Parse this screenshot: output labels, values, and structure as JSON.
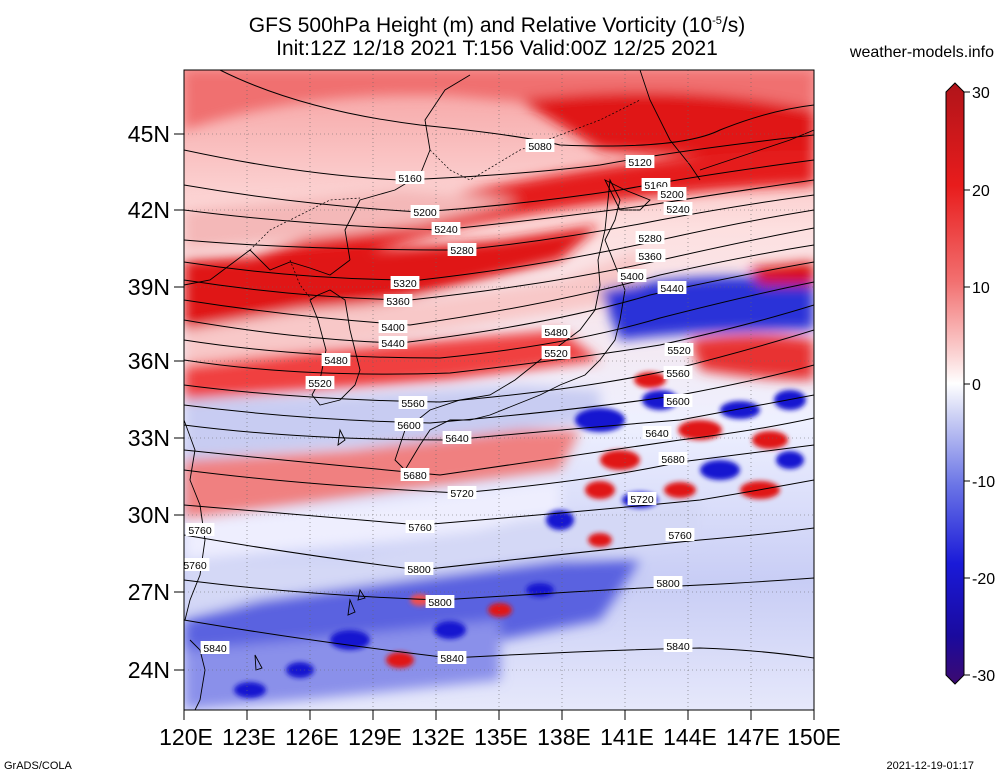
{
  "title": {
    "line1": "GFS 500hPa Height (m) and Relative Vorticity (10",
    "line1_sup": "-5",
    "line1_end": "/s)",
    "line2": "Init:12Z 12/18 2021 T:156 Valid:00Z 12/25 2021"
  },
  "source": "weather-models.info",
  "footer": {
    "left": "GrADS/COLA",
    "right": "2021-12-19-01:17"
  },
  "map": {
    "lon_range": [
      120,
      150
    ],
    "lat_range": [
      22.5,
      48
    ],
    "lat_ticks": [
      "24N",
      "27N",
      "30N",
      "33N",
      "36N",
      "39N",
      "42N",
      "45N"
    ],
    "lon_ticks": [
      "120E",
      "123E",
      "126E",
      "129E",
      "132E",
      "135E",
      "138E",
      "141E",
      "144E",
      "147E",
      "150E"
    ]
  },
  "colorbar": {
    "labels": [
      "30",
      "20",
      "10",
      "0",
      "-10",
      "-20",
      "-30"
    ],
    "colors": [
      "#b0141a",
      "#e81c1c",
      "#f27070",
      "#fbd2d2",
      "#ffffff",
      "#d0d4f5",
      "#6a74e6",
      "#1a1ad8",
      "#1a0a9e",
      "#3c0a70"
    ]
  },
  "contours": [
    {
      "label": "5080"
    },
    {
      "label": "5120"
    },
    {
      "label": "5160"
    },
    {
      "label": "5200"
    },
    {
      "label": "5240"
    },
    {
      "label": "5280"
    },
    {
      "label": "5320"
    },
    {
      "label": "5360"
    },
    {
      "label": "5400"
    },
    {
      "label": "5440"
    },
    {
      "label": "5480"
    },
    {
      "label": "5520"
    },
    {
      "label": "5560"
    },
    {
      "label": "5600"
    },
    {
      "label": "5640"
    },
    {
      "label": "5680"
    },
    {
      "label": "5720"
    },
    {
      "label": "5760"
    },
    {
      "label": "5800"
    },
    {
      "label": "5840"
    }
  ]
}
